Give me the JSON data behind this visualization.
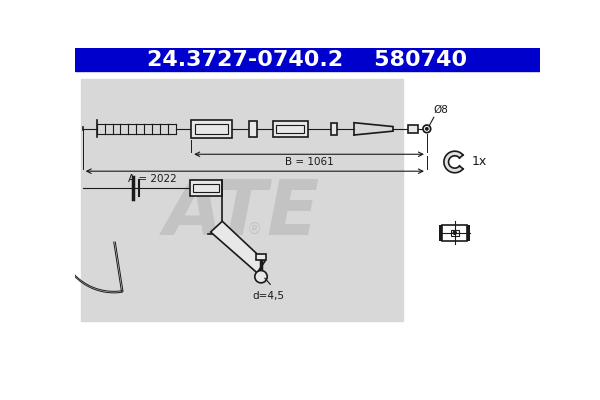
{
  "title1": "24.3727-0740.2",
  "title2": "580740",
  "title_bg": "#0000cc",
  "title_fg": "#ffffff",
  "title_fontsize": 16,
  "label_A": "A = 2022",
  "label_B": "B = 1061",
  "label_d": "d=4,5",
  "label_dia": "Ø8",
  "label_1x": "1x",
  "bg_color": "#ffffff",
  "line_color": "#1a1a1a",
  "box_color": "#d8d8d8",
  "dim_color": "#1a1a1a"
}
